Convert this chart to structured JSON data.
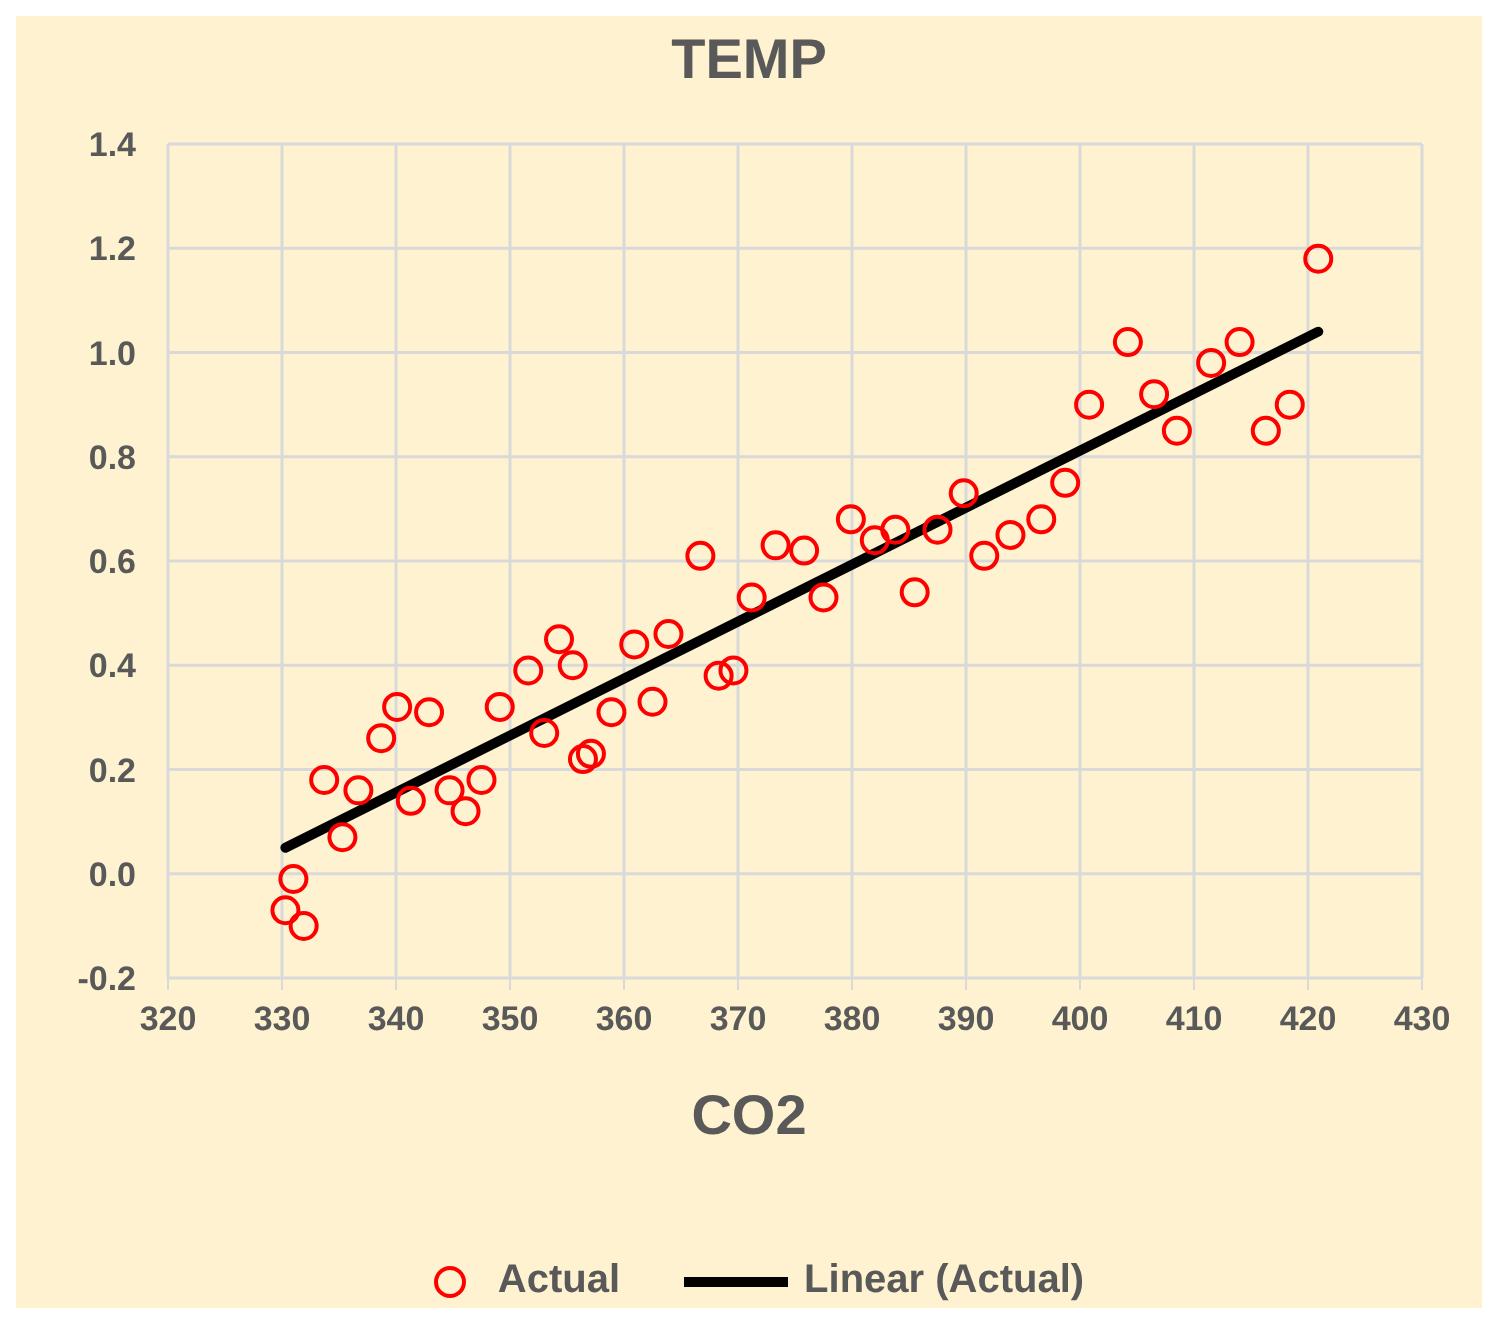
{
  "chart_data": {
    "type": "scatter",
    "title": "TEMP",
    "xlabel": "CO2",
    "xlim": [
      320,
      430
    ],
    "xticks": [
      320,
      330,
      340,
      350,
      360,
      370,
      380,
      390,
      400,
      410,
      420,
      430
    ],
    "ylim": [
      -0.2,
      1.4
    ],
    "yticks": [
      -0.2,
      {
        "value": 0,
        "label": "0.0"
      },
      0.2,
      0.4,
      0.6,
      0.8,
      {
        "value": 1,
        "label": "1.0"
      },
      1.2,
      1.4
    ],
    "grid": true,
    "legend": "bottom",
    "series": [
      {
        "name": "Actual",
        "marker": "circle",
        "color": "#ff0000",
        "x": [
          330.3,
          331.0,
          331.9,
          333.7,
          335.3,
          336.7,
          338.7,
          340.1,
          341.3,
          342.9,
          344.7,
          346.1,
          347.5,
          349.1,
          351.6,
          353.0,
          354.3,
          355.5,
          356.4,
          357.1,
          358.9,
          360.9,
          362.5,
          363.9,
          366.7,
          368.3,
          369.6,
          371.2,
          373.3,
          375.8,
          377.5,
          379.9,
          382.0,
          383.8,
          385.5,
          387.5,
          389.8,
          391.6,
          393.9,
          396.6,
          398.7,
          400.8,
          404.2,
          406.5,
          408.5,
          411.5,
          414.0,
          416.3,
          418.4,
          420.9
        ],
        "values": [
          -0.07,
          -0.01,
          -0.1,
          0.18,
          0.07,
          0.16,
          0.26,
          0.32,
          0.14,
          0.31,
          0.16,
          0.12,
          0.18,
          0.32,
          0.39,
          0.27,
          0.45,
          0.4,
          0.22,
          0.23,
          0.31,
          0.44,
          0.33,
          0.46,
          0.61,
          0.38,
          0.39,
          0.53,
          0.63,
          0.62,
          0.53,
          0.68,
          0.64,
          0.66,
          0.54,
          0.66,
          0.73,
          0.61,
          0.65,
          0.68,
          0.75,
          0.9,
          1.02,
          0.92,
          0.85,
          0.98,
          1.02,
          0.85,
          0.9,
          1.18
        ]
      },
      {
        "name": "Linear (Actual)",
        "type": "line",
        "marker": "none",
        "color": "#000000",
        "x": [
          330.3,
          420.9
        ],
        "values": [
          0.05,
          1.04
        ]
      }
    ]
  }
}
